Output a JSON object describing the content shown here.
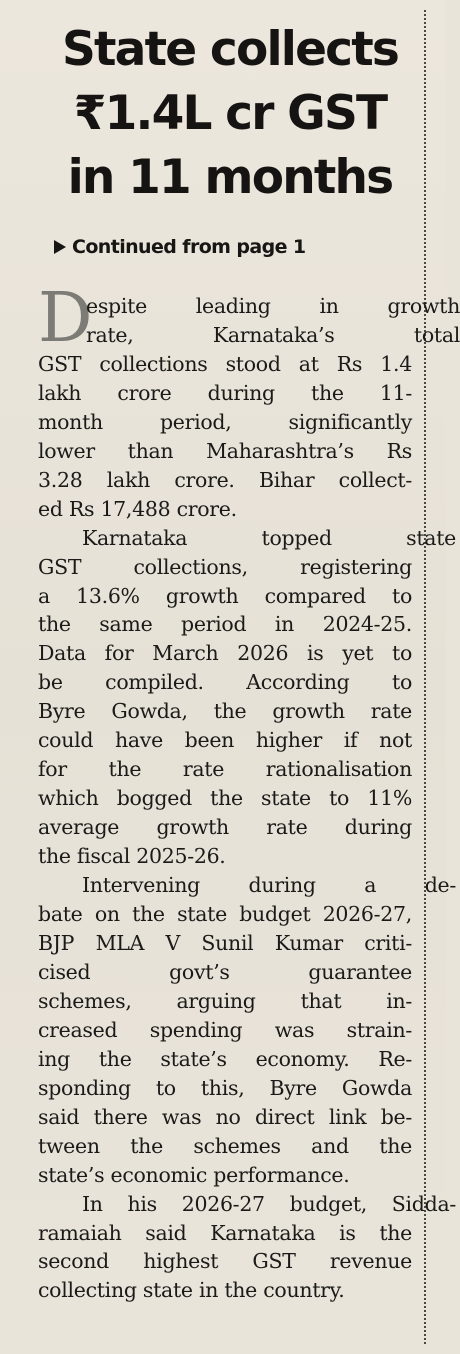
{
  "headline": {
    "lines": [
      "State collects",
      "₹1.4L cr GST",
      "in 11 months"
    ]
  },
  "continued": {
    "text": "Continued from page 1",
    "icon": "play-arrow-icon"
  },
  "article": {
    "dropcap": "D",
    "paragraphs": [
      [
        "espite leading in growth",
        "rate, Karnataka’s total",
        "GST collections stood at Rs 1.4",
        "lakh crore during the 11-",
        "month period, significantly",
        "lower than Maharashtra’s Rs",
        "3.28 lakh crore. Bihar collect-",
        "ed Rs 17,488 crore."
      ],
      [
        "Karnataka topped state",
        "GST collections, registering",
        "a 13.6% growth compared to",
        "the same period in 2024-25.",
        "Data for March 2026 is yet to",
        "be compiled. According to",
        "Byre Gowda, the growth rate",
        "could have been higher if not",
        "for the rate rationalisation",
        "which bogged the state to 11%",
        "average growth rate during",
        "the fiscal 2025-26."
      ],
      [
        "Intervening during a de-",
        "bate on the state budget 2026-27,",
        "BJP MLA V Sunil Kumar criti-",
        "cised govt’s guarantee",
        "schemes, arguing that in-",
        "creased spending was strain-",
        "ing the state’s economy. Re-",
        "sponding to this, Byre Gowda",
        "said there was no direct link be-",
        "tween the schemes and the",
        "state’s economic performance."
      ],
      [
        "In his 2026-27 budget, Sidda-",
        "ramaiah said Karnataka is the",
        "second highest GST revenue",
        "collecting state in the country."
      ]
    ]
  }
}
